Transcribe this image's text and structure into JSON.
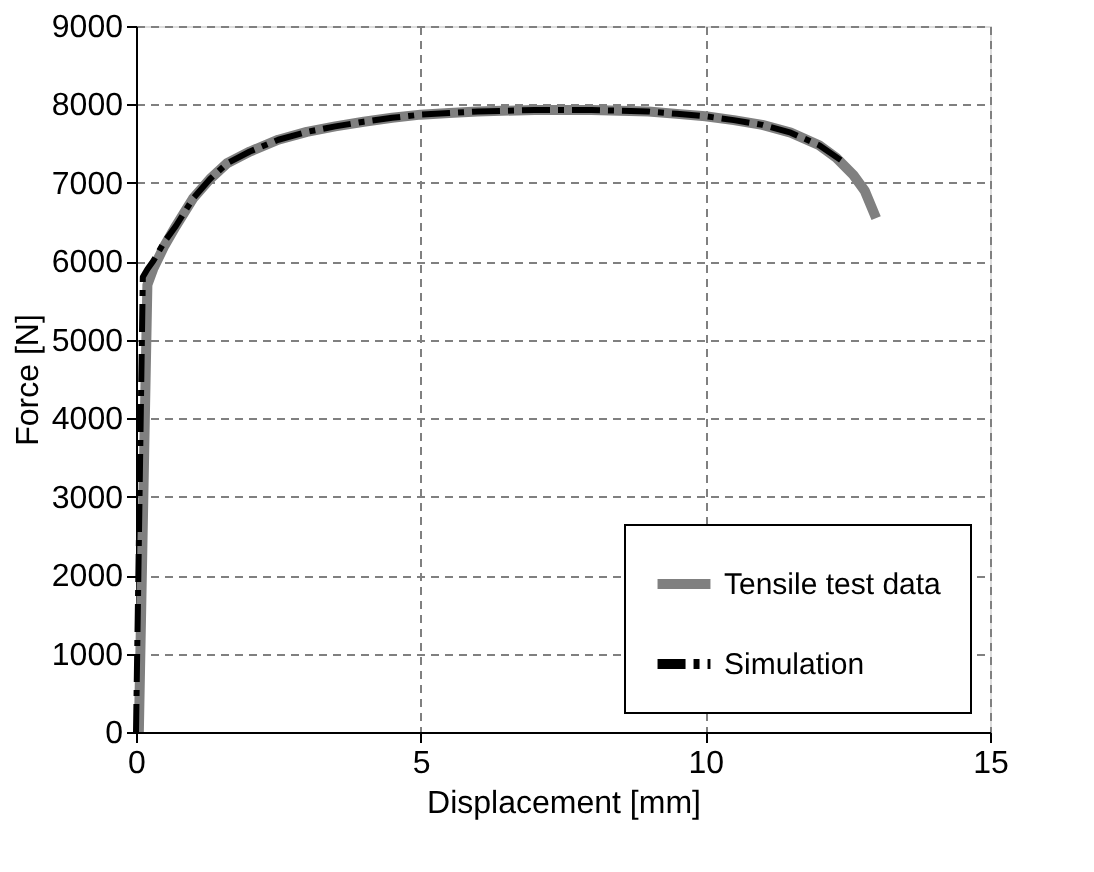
{
  "chart_data": {
    "type": "line",
    "xlabel": "Displacement [mm]",
    "ylabel": "Force [N]",
    "xlim": [
      0,
      15
    ],
    "xticks": [
      0,
      5,
      10,
      15
    ],
    "ylim": [
      0,
      9000
    ],
    "yticks": [
      0,
      1000,
      2000,
      3000,
      4000,
      5000,
      6000,
      7000,
      8000,
      9000
    ],
    "grid": true,
    "legend": "bottom right",
    "marker": "none",
    "series": [
      {
        "name": "Tensile test data",
        "color": "#808080",
        "line_style": "solid",
        "x": [
          0.05,
          0.2,
          0.3,
          0.5,
          0.7,
          1.0,
          1.3,
          1.6,
          2.0,
          2.5,
          3.0,
          3.5,
          4.0,
          4.5,
          5.0,
          5.5,
          6.0,
          7.0,
          8.0,
          8.5,
          9.0,
          9.5,
          10.0,
          10.5,
          11.0,
          11.5,
          12.0,
          12.3,
          12.6,
          12.8,
          13.0
        ],
        "values": [
          0,
          5700,
          5900,
          6200,
          6450,
          6800,
          7050,
          7250,
          7400,
          7550,
          7650,
          7720,
          7780,
          7830,
          7870,
          7890,
          7910,
          7930,
          7930,
          7920,
          7910,
          7880,
          7850,
          7800,
          7740,
          7640,
          7480,
          7320,
          7100,
          6900,
          6550
        ]
      },
      {
        "name": "Simulation",
        "color": "#000000",
        "line_style": "dashed",
        "x": [
          0,
          0.12,
          0.2,
          0.3,
          0.5,
          0.7,
          1.0,
          1.3,
          1.6,
          2.0,
          2.5,
          3.0,
          3.5,
          4.0,
          4.5,
          5.0,
          5.5,
          6.0,
          7.0,
          8.0,
          8.5,
          9.0,
          9.5,
          10.0,
          10.5,
          11.0,
          11.5,
          12.0,
          12.4
        ],
        "values": [
          0,
          5800,
          5900,
          6000,
          6250,
          6450,
          6800,
          7050,
          7250,
          7400,
          7550,
          7650,
          7720,
          7780,
          7830,
          7870,
          7890,
          7910,
          7930,
          7930,
          7920,
          7910,
          7880,
          7850,
          7800,
          7740,
          7640,
          7480,
          7280
        ]
      }
    ]
  }
}
